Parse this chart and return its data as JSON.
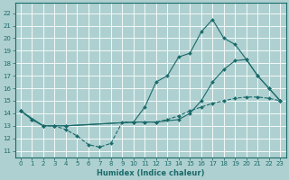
{
  "xlabel": "Humidex (Indice chaleur)",
  "bg_color": "#afd0d0",
  "grid_color": "#ffffff",
  "line_color": "#1a6b6b",
  "xlim": [
    -0.5,
    23.5
  ],
  "ylim": [
    10.5,
    22.8
  ],
  "yticks": [
    11,
    12,
    13,
    14,
    15,
    16,
    17,
    18,
    19,
    20,
    21,
    22
  ],
  "xticks": [
    0,
    1,
    2,
    3,
    4,
    5,
    6,
    7,
    8,
    9,
    10,
    11,
    12,
    13,
    14,
    15,
    16,
    17,
    18,
    19,
    20,
    21,
    22,
    23
  ],
  "line1_x": [
    0,
    1,
    2,
    3,
    4,
    10,
    11,
    12,
    13,
    14,
    15,
    16,
    17,
    18,
    19,
    20,
    21,
    22,
    23
  ],
  "line1_y": [
    14.2,
    13.5,
    13.0,
    13.0,
    13.0,
    13.3,
    14.5,
    16.5,
    17.0,
    18.5,
    18.8,
    20.5,
    21.5,
    20.0,
    19.5,
    18.3,
    17.0,
    16.0,
    15.0
  ],
  "line2_x": [
    0,
    2,
    3,
    4,
    10,
    11,
    12,
    14,
    15,
    16,
    17,
    18,
    19,
    20,
    21,
    22,
    23
  ],
  "line2_y": [
    14.2,
    13.0,
    13.0,
    13.0,
    13.3,
    13.3,
    13.3,
    13.5,
    14.0,
    15.0,
    16.5,
    17.5,
    18.2,
    18.3,
    17.0,
    16.0,
    15.0
  ],
  "line3_x": [
    0,
    1,
    2,
    3,
    4,
    5,
    6,
    7,
    8,
    9,
    10,
    11,
    12,
    13,
    14,
    15,
    16,
    17,
    18,
    19,
    20,
    21,
    22,
    23
  ],
  "line3_y": [
    14.2,
    13.5,
    13.0,
    13.0,
    12.7,
    12.2,
    11.5,
    11.3,
    11.6,
    13.3,
    13.3,
    13.3,
    13.3,
    13.5,
    13.8,
    14.2,
    14.5,
    14.8,
    15.0,
    15.2,
    15.3,
    15.3,
    15.2,
    15.0
  ],
  "tick_fontsize": 5,
  "xlabel_fontsize": 6
}
